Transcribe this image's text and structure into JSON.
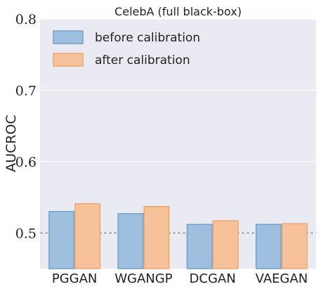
{
  "chart_data": {
    "type": "bar",
    "title": "CelebA (full black-box)",
    "xlabel": "",
    "ylabel": "AUCROC",
    "ylim": [
      0.45,
      0.8
    ],
    "yticks": [
      "0.5",
      "0.6",
      "0.7",
      "0.8"
    ],
    "ytick_values": [
      0.5,
      0.6,
      0.7,
      0.8
    ],
    "categories": [
      "PGGAN",
      "WGANGP",
      "DCGAN",
      "VAEGAN"
    ],
    "reference_line": 0.5,
    "grid": true,
    "legend_position": "top-left",
    "series": [
      {
        "name": "before calibration",
        "values": [
          0.53,
          0.527,
          0.512,
          0.512
        ],
        "fill": "#9ec0de",
        "stroke": "#6fa1cf"
      },
      {
        "name": "after calibration",
        "values": [
          0.541,
          0.537,
          0.517,
          0.513
        ],
        "fill": "#f7c19a",
        "stroke": "#f0a56e"
      }
    ]
  }
}
